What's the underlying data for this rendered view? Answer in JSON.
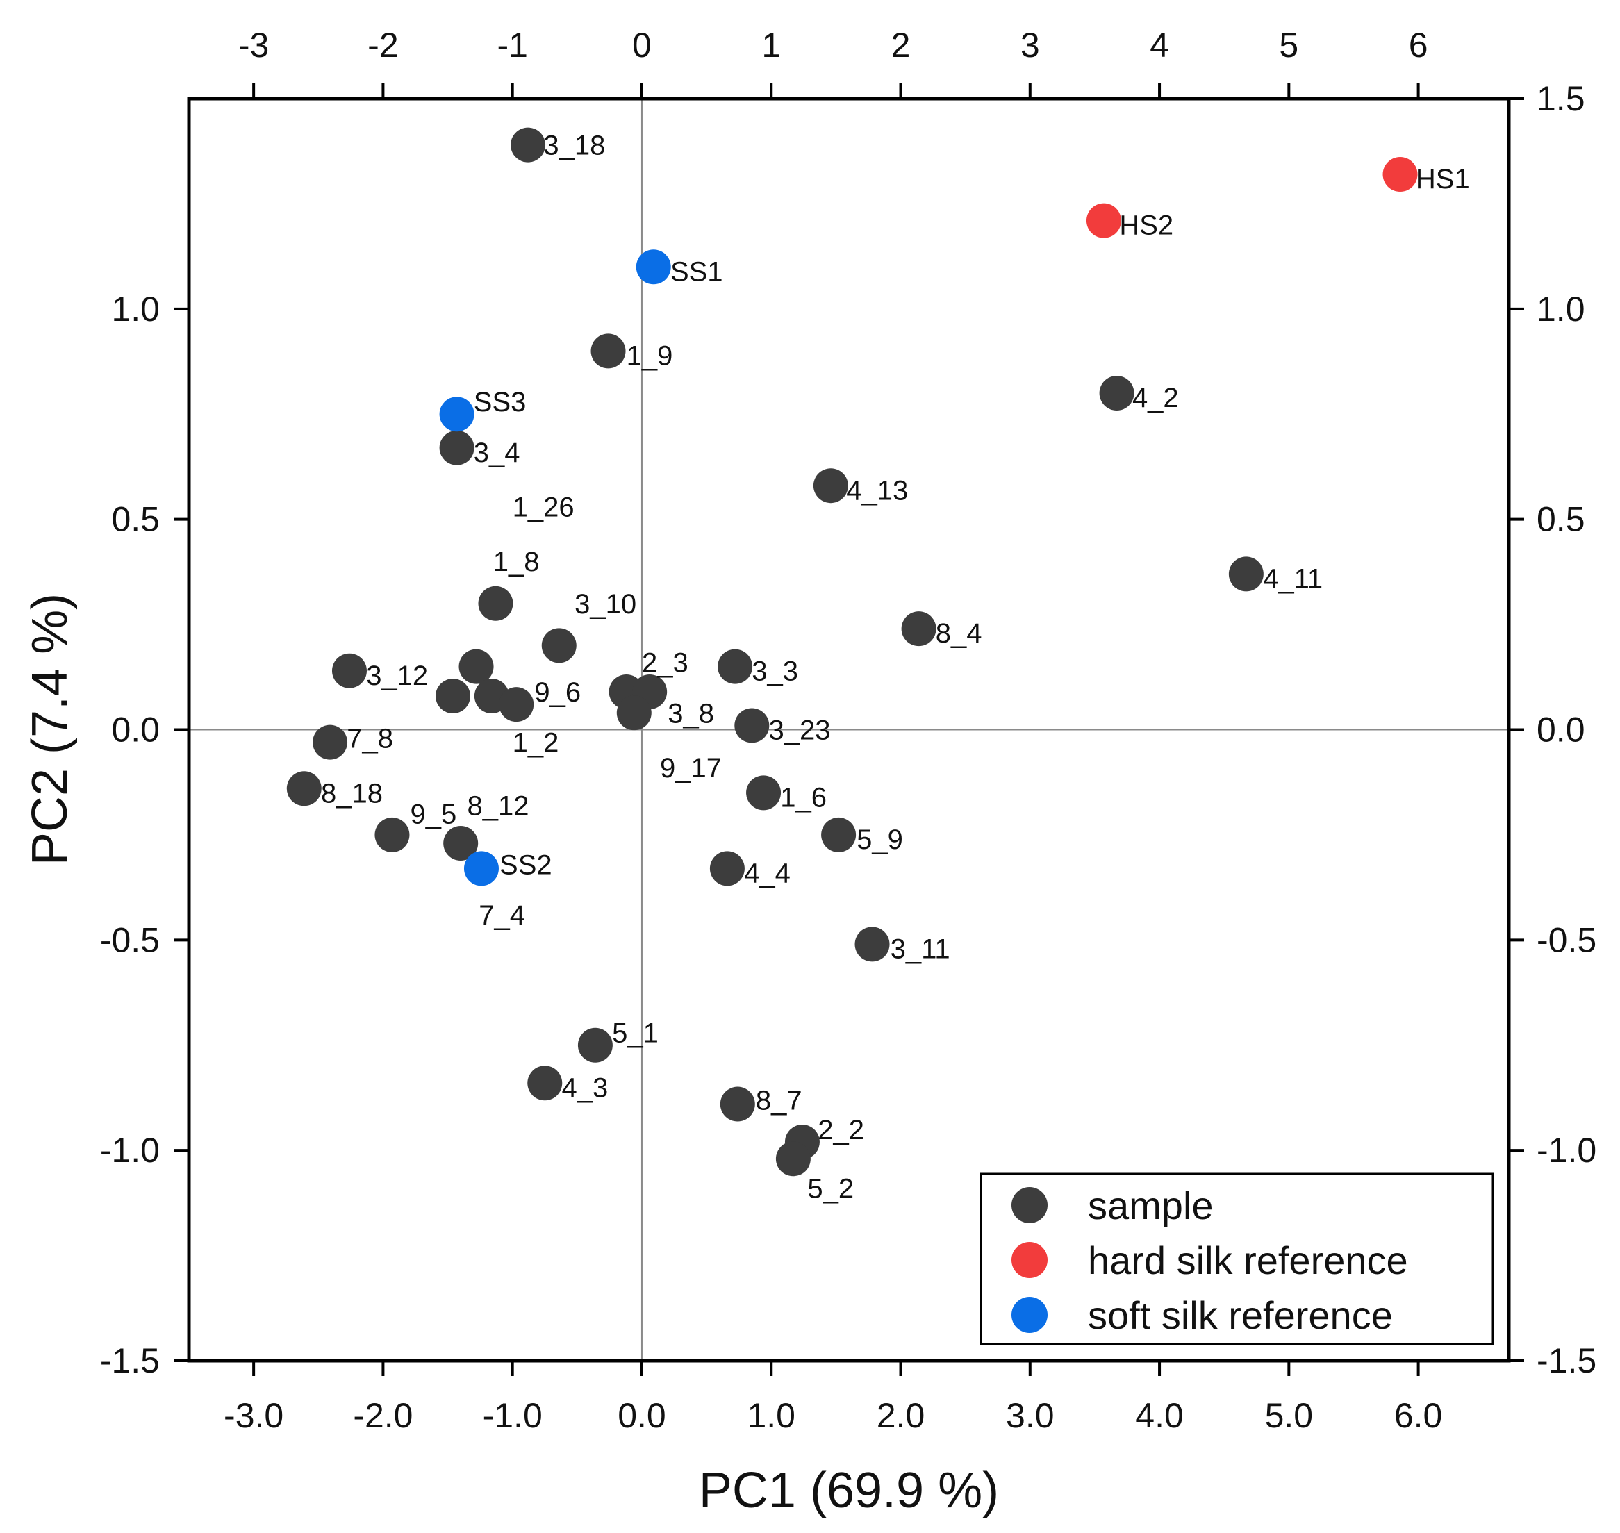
{
  "chart_data": {
    "type": "scatter",
    "xlabel": "PC1 (69.9 %)",
    "ylabel": "PC2 (7.4 %)",
    "xlim": [
      -3.5,
      6.7
    ],
    "ylim": [
      -1.5,
      1.5
    ],
    "bottom_ticks": [
      {
        "v": -3,
        "label": "-3.0"
      },
      {
        "v": -2,
        "label": "-2.0"
      },
      {
        "v": -1,
        "label": "-1.0"
      },
      {
        "v": 0,
        "label": "0.0"
      },
      {
        "v": 1,
        "label": "1.0"
      },
      {
        "v": 2,
        "label": "2.0"
      },
      {
        "v": 3,
        "label": "3.0"
      },
      {
        "v": 4,
        "label": "4.0"
      },
      {
        "v": 5,
        "label": "5.0"
      },
      {
        "v": 6,
        "label": "6.0"
      }
    ],
    "top_ticks": [
      {
        "v": -3,
        "label": "-3"
      },
      {
        "v": -2,
        "label": "-2"
      },
      {
        "v": -1,
        "label": "-1"
      },
      {
        "v": 0,
        "label": "0"
      },
      {
        "v": 1,
        "label": "1"
      },
      {
        "v": 2,
        "label": "2"
      },
      {
        "v": 3,
        "label": "3"
      },
      {
        "v": 4,
        "label": "4"
      },
      {
        "v": 5,
        "label": "5"
      },
      {
        "v": 6,
        "label": "6"
      }
    ],
    "left_ticks": [
      {
        "v": 1.0,
        "label": "1.0"
      },
      {
        "v": 0.5,
        "label": "0.5"
      },
      {
        "v": 0.0,
        "label": "0.0"
      },
      {
        "v": -0.5,
        "label": "-0.5"
      },
      {
        "v": -1.0,
        "label": "-1.0"
      },
      {
        "v": -1.5,
        "label": "-1.5"
      }
    ],
    "right_ticks": [
      {
        "v": 1.5,
        "label": "1.5"
      },
      {
        "v": 1.0,
        "label": "1.0"
      },
      {
        "v": 0.5,
        "label": "0.5"
      },
      {
        "v": 0.0,
        "label": "0.0"
      },
      {
        "v": -0.5,
        "label": "-0.5"
      },
      {
        "v": -1.0,
        "label": "-1.0"
      },
      {
        "v": -1.5,
        "label": "-1.5"
      }
    ],
    "series": [
      {
        "name": "sample",
        "color": "#3d3d3d",
        "points": [
          {
            "x": -0.88,
            "y": 1.39
          },
          {
            "x": -0.26,
            "y": 0.9
          },
          {
            "x": -1.43,
            "y": 0.67
          },
          {
            "x": -1.13,
            "y": 0.3
          },
          {
            "x": -0.64,
            "y": 0.2
          },
          {
            "x": -2.26,
            "y": 0.14
          },
          {
            "x": -1.28,
            "y": 0.15
          },
          {
            "x": -1.46,
            "y": 0.08
          },
          {
            "x": -1.16,
            "y": 0.08
          },
          {
            "x": -0.97,
            "y": 0.06
          },
          {
            "x": -0.12,
            "y": 0.09
          },
          {
            "x": 0.06,
            "y": 0.09
          },
          {
            "x": -0.06,
            "y": 0.04
          },
          {
            "x": 0.72,
            "y": 0.15
          },
          {
            "x": 0.85,
            "y": 0.01
          },
          {
            "x": -2.41,
            "y": -0.03
          },
          {
            "x": -2.61,
            "y": -0.14
          },
          {
            "x": -1.93,
            "y": -0.25
          },
          {
            "x": -1.4,
            "y": -0.27
          },
          {
            "x": 0.94,
            "y": -0.15
          },
          {
            "x": 1.52,
            "y": -0.25
          },
          {
            "x": 0.66,
            "y": -0.33
          },
          {
            "x": 1.78,
            "y": -0.51
          },
          {
            "x": -0.36,
            "y": -0.75
          },
          {
            "x": -0.75,
            "y": -0.84
          },
          {
            "x": 0.74,
            "y": -0.89
          },
          {
            "x": 1.24,
            "y": -0.98
          },
          {
            "x": 1.17,
            "y": -1.02
          },
          {
            "x": 1.46,
            "y": 0.58
          },
          {
            "x": 3.67,
            "y": 0.8
          },
          {
            "x": 4.67,
            "y": 0.37
          },
          {
            "x": 2.14,
            "y": 0.24
          }
        ]
      },
      {
        "name": "hard silk reference",
        "color": "#f23c3c",
        "points": [
          {
            "x": 5.86,
            "y": 1.32
          },
          {
            "x": 3.57,
            "y": 1.21
          }
        ]
      },
      {
        "name": "soft silk reference",
        "color": "#0a6ee6",
        "points": [
          {
            "x": 0.09,
            "y": 1.1
          },
          {
            "x": -1.43,
            "y": 0.75
          },
          {
            "x": -1.24,
            "y": -0.33
          }
        ]
      }
    ],
    "annotations": [
      {
        "text": "3_18",
        "x": -0.76,
        "y": 1.39
      },
      {
        "text": "HS1",
        "x": 5.98,
        "y": 1.31
      },
      {
        "text": "HS2",
        "x": 3.69,
        "y": 1.2
      },
      {
        "text": "SS1",
        "x": 0.22,
        "y": 1.09
      },
      {
        "text": "1_9",
        "x": -0.12,
        "y": 0.89
      },
      {
        "text": "4_2",
        "x": 3.79,
        "y": 0.79
      },
      {
        "text": "SS3",
        "x": -1.3,
        "y": 0.78
      },
      {
        "text": "3_4",
        "x": -1.3,
        "y": 0.66
      },
      {
        "text": "4_13",
        "x": 1.58,
        "y": 0.57
      },
      {
        "text": "1_26",
        "x": -1.0,
        "y": 0.53
      },
      {
        "text": "4_11",
        "x": 4.8,
        "y": 0.36
      },
      {
        "text": "1_8",
        "x": -1.15,
        "y": 0.4
      },
      {
        "text": "3_10",
        "x": -0.52,
        "y": 0.3
      },
      {
        "text": "8_4",
        "x": 2.27,
        "y": 0.23
      },
      {
        "text": "2_3",
        "x": 0.0,
        "y": 0.16
      },
      {
        "text": "3_3",
        "x": 0.85,
        "y": 0.14
      },
      {
        "text": "3_12",
        "x": -2.13,
        "y": 0.13
      },
      {
        "text": "9_6",
        "x": -0.83,
        "y": 0.09
      },
      {
        "text": "3_8",
        "x": 0.2,
        "y": 0.04
      },
      {
        "text": "3_23",
        "x": 0.98,
        "y": 0.0
      },
      {
        "text": "7_8",
        "x": -2.28,
        "y": -0.02
      },
      {
        "text": "1_2",
        "x": -1.0,
        "y": -0.03
      },
      {
        "text": "9_17",
        "x": 0.14,
        "y": -0.09
      },
      {
        "text": "8_18",
        "x": -2.48,
        "y": -0.15
      },
      {
        "text": "1_6",
        "x": 1.07,
        "y": -0.16
      },
      {
        "text": "9_5",
        "x": -1.79,
        "y": -0.2
      },
      {
        "text": "8_12",
        "x": -1.35,
        "y": -0.18
      },
      {
        "text": "5_9",
        "x": 1.66,
        "y": -0.26
      },
      {
        "text": "SS2",
        "x": -1.1,
        "y": -0.32
      },
      {
        "text": "4_4",
        "x": 0.79,
        "y": -0.34
      },
      {
        "text": "7_4",
        "x": -1.26,
        "y": -0.44
      },
      {
        "text": "3_11",
        "x": 1.92,
        "y": -0.52
      },
      {
        "text": "5_1",
        "x": -0.23,
        "y": -0.72
      },
      {
        "text": "4_3",
        "x": -0.62,
        "y": -0.85
      },
      {
        "text": "8_7",
        "x": 0.88,
        "y": -0.88
      },
      {
        "text": "2_2",
        "x": 1.36,
        "y": -0.95
      },
      {
        "text": "5_2",
        "x": 1.28,
        "y": -1.09
      }
    ],
    "legend": {
      "position": "bottom-right",
      "entries": [
        {
          "label": "sample",
          "color": "#3d3d3d"
        },
        {
          "label": "hard silk reference",
          "color": "#f23c3c"
        },
        {
          "label": "soft silk reference",
          "color": "#0a6ee6"
        }
      ]
    }
  }
}
